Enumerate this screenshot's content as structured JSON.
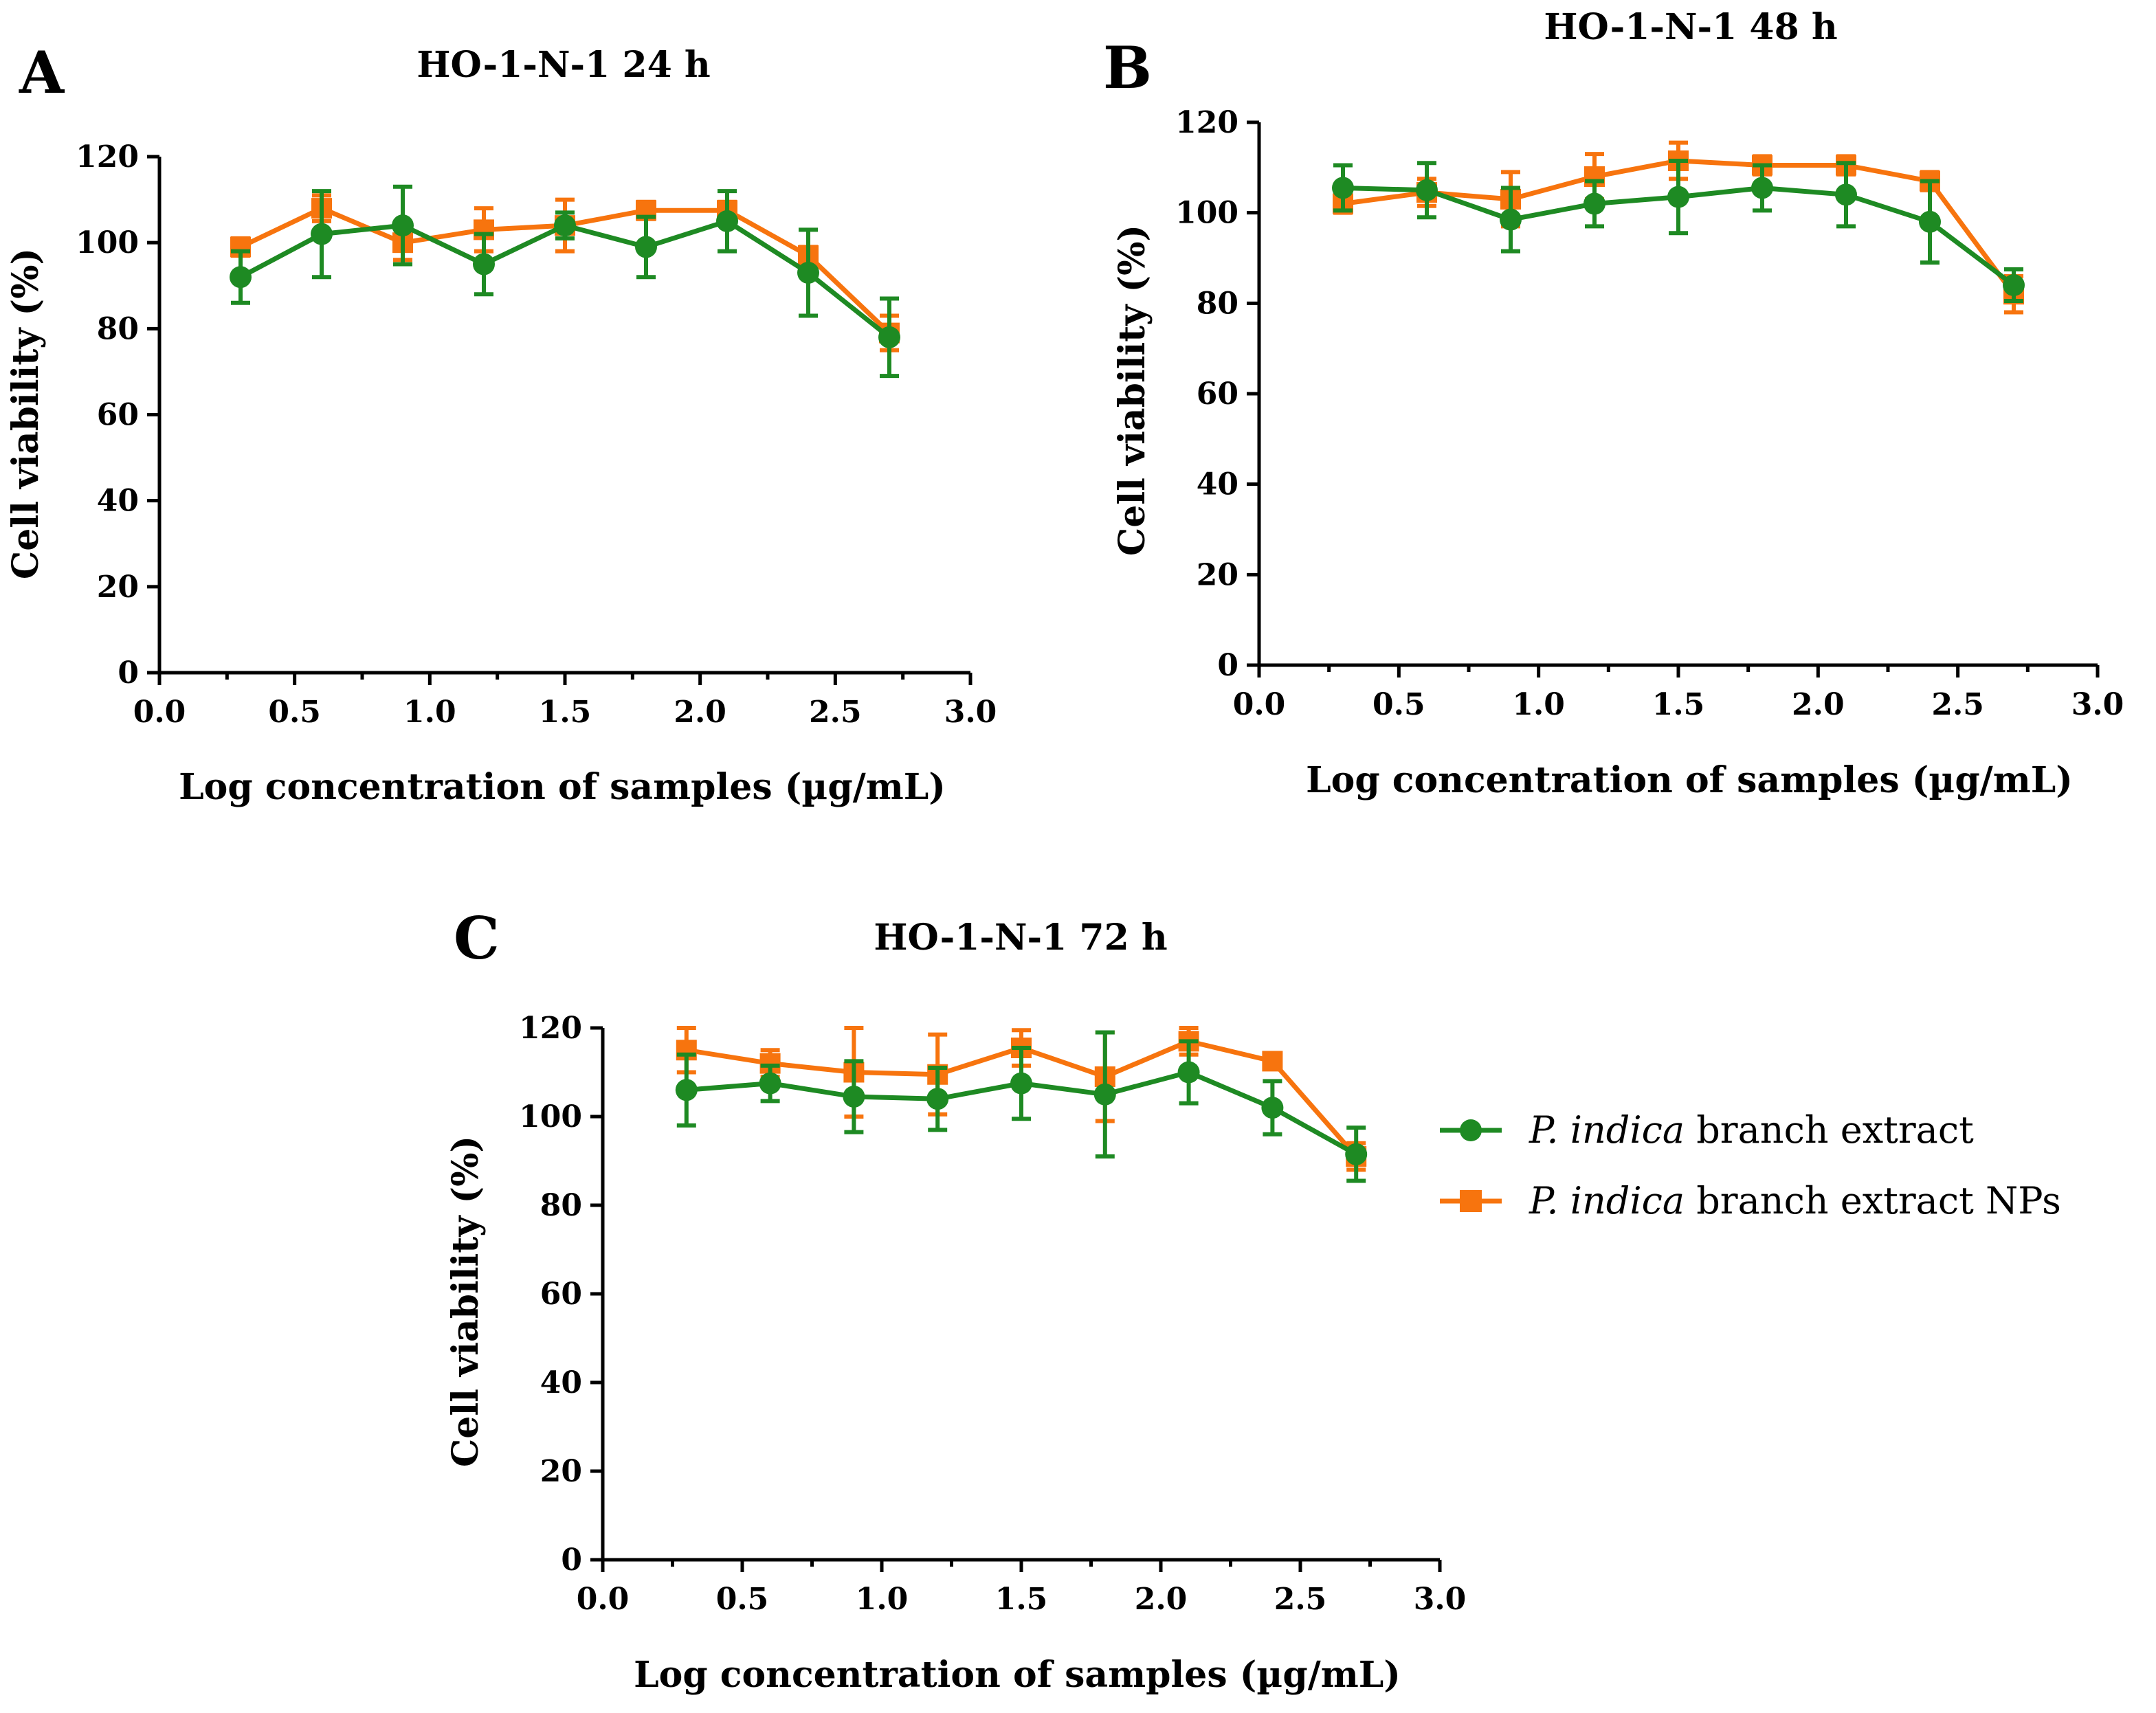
{
  "chart_data": [
    {
      "type": "line",
      "panel": "A",
      "title": "HO-1-N-1 24 h",
      "xlabel": "Log concentration of samples  (µg/mL)",
      "ylabel": "Cell viability (%)",
      "xlim": [
        0.0,
        3.0
      ],
      "ylim": [
        0,
        120
      ],
      "xticks": [
        "0.0",
        "0.5",
        "1.0",
        "1.5",
        "2.0",
        "2.5",
        "3.0"
      ],
      "yticks": [
        "0",
        "20",
        "40",
        "60",
        "80",
        "100",
        "120"
      ],
      "x": [
        0.3,
        0.6,
        0.9,
        1.2,
        1.5,
        1.8,
        2.1,
        2.4,
        2.7
      ],
      "series": [
        {
          "name": "P. indica branch extract NPs",
          "color": "#F7740E",
          "marker": "square",
          "values": [
            99,
            108,
            100,
            103,
            104,
            107.5,
            107.5,
            97,
            79
          ],
          "errors": [
            2,
            3,
            4,
            5,
            6,
            2,
            2,
            2,
            4
          ]
        },
        {
          "name": "P. indica branch extract",
          "color": "#1E8A23",
          "marker": "circle",
          "values": [
            92,
            102,
            104,
            95,
            104,
            99,
            105,
            93,
            78
          ],
          "errors": [
            6,
            10,
            9,
            7,
            3,
            7,
            7,
            10,
            9
          ]
        }
      ]
    },
    {
      "type": "line",
      "panel": "B",
      "title": "HO-1-N-1 48 h",
      "xlabel": "Log concentration of samples  (µg/mL)",
      "ylabel": "Cell viability (%)",
      "xlim": [
        0.0,
        3.0
      ],
      "ylim": [
        0,
        120
      ],
      "xticks": [
        "0.0",
        "0.5",
        "1.0",
        "1.5",
        "2.0",
        "2.5",
        "3.0"
      ],
      "yticks": [
        "0",
        "20",
        "40",
        "60",
        "80",
        "100",
        "120"
      ],
      "x": [
        0.3,
        0.6,
        0.9,
        1.2,
        1.5,
        1.8,
        2.1,
        2.4,
        2.7
      ],
      "series": [
        {
          "name": "P. indica branch extract NPs",
          "color": "#F7740E",
          "marker": "square",
          "values": [
            102,
            104.5,
            103,
            108,
            111.5,
            110.5,
            110.5,
            107,
            82
          ],
          "errors": [
            2,
            3,
            6,
            5,
            4,
            2,
            2,
            2,
            4
          ]
        },
        {
          "name": "P. indica branch extract",
          "color": "#1E8A23",
          "marker": "circle",
          "values": [
            105.5,
            105,
            98.5,
            102,
            103.5,
            105.5,
            104,
            98,
            84
          ],
          "errors": [
            5,
            6,
            7,
            5,
            8,
            5,
            7,
            9,
            3.5
          ]
        }
      ]
    },
    {
      "type": "line",
      "panel": "C",
      "title": "HO-1-N-1 72 h",
      "xlabel": "Log concentration of samples  (µg/mL)",
      "ylabel": "Cell viability (%)",
      "xlim": [
        0.0,
        3.0
      ],
      "ylim": [
        0,
        120
      ],
      "xticks": [
        "0.0",
        "0.5",
        "1.0",
        "1.5",
        "2.0",
        "2.5",
        "3.0"
      ],
      "yticks": [
        "0",
        "20",
        "40",
        "60",
        "80",
        "100",
        "120"
      ],
      "x": [
        0.3,
        0.6,
        0.9,
        1.2,
        1.5,
        1.8,
        2.1,
        2.4,
        2.7
      ],
      "series": [
        {
          "name": "P. indica branch extract NPs",
          "color": "#F7740E",
          "marker": "square",
          "values": [
            115,
            112,
            110,
            109.5,
            115.5,
            109,
            117,
            112.5,
            91
          ],
          "errors": [
            5,
            3,
            10,
            9,
            4,
            10,
            3,
            1.5,
            3
          ]
        },
        {
          "name": "P. indica branch extract",
          "color": "#1E8A23",
          "marker": "circle",
          "values": [
            106,
            107.5,
            104.5,
            104,
            107.5,
            105,
            110,
            102,
            91.5
          ],
          "errors": [
            8,
            4,
            8,
            7,
            8,
            14,
            7,
            6,
            6
          ]
        }
      ]
    }
  ],
  "legend": {
    "items": [
      {
        "italic": "P. indica",
        "rest": " branch extract",
        "color": "#1E8A23",
        "marker": "circle"
      },
      {
        "italic": "P. indica",
        "rest": " branch extract NPs",
        "color": "#F7740E",
        "marker": "square"
      }
    ]
  }
}
